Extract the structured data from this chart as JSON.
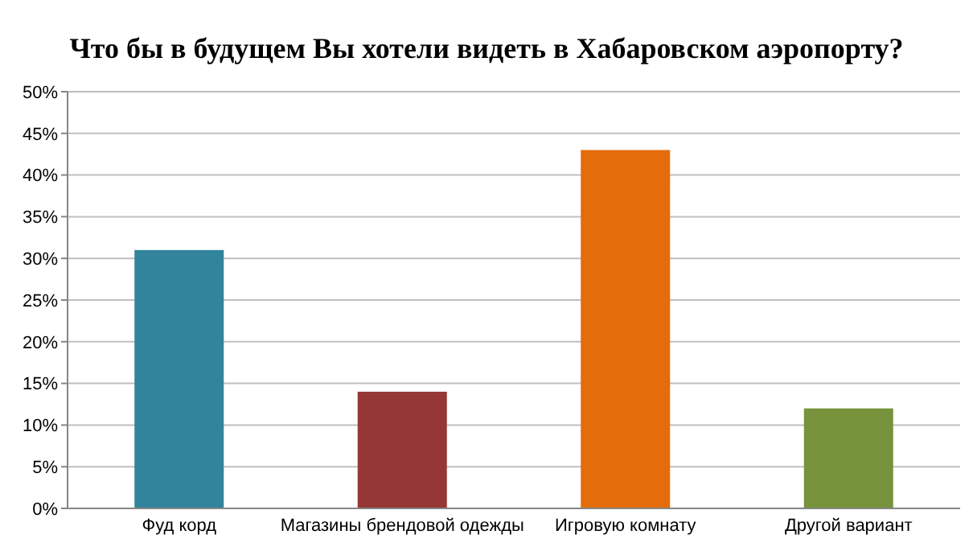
{
  "chart_data": {
    "type": "bar",
    "title": "Что бы в будущем Вы хотели видеть в Хабаровском аэропорту?",
    "categories": [
      "Фуд корд",
      "Магазины брендовой одежды",
      "Игровую комнату",
      "Другой вариант"
    ],
    "values": [
      31,
      14,
      43,
      12
    ],
    "colors": [
      "#31849b",
      "#953735",
      "#e46c0a",
      "#77933c"
    ],
    "ylim": [
      0,
      50
    ],
    "yticks": [
      {
        "value": 0,
        "label": "0%"
      },
      {
        "value": 5,
        "label": "5%"
      },
      {
        "value": 10,
        "label": "10%"
      },
      {
        "value": 15,
        "label": "15%"
      },
      {
        "value": 20,
        "label": "20%"
      },
      {
        "value": 25,
        "label": "25%"
      },
      {
        "value": 30,
        "label": "30%"
      },
      {
        "value": 35,
        "label": "35%"
      },
      {
        "value": 40,
        "label": "40%"
      },
      {
        "value": 45,
        "label": "45%"
      },
      {
        "value": 50,
        "label": "50%"
      }
    ],
    "grid": true
  }
}
